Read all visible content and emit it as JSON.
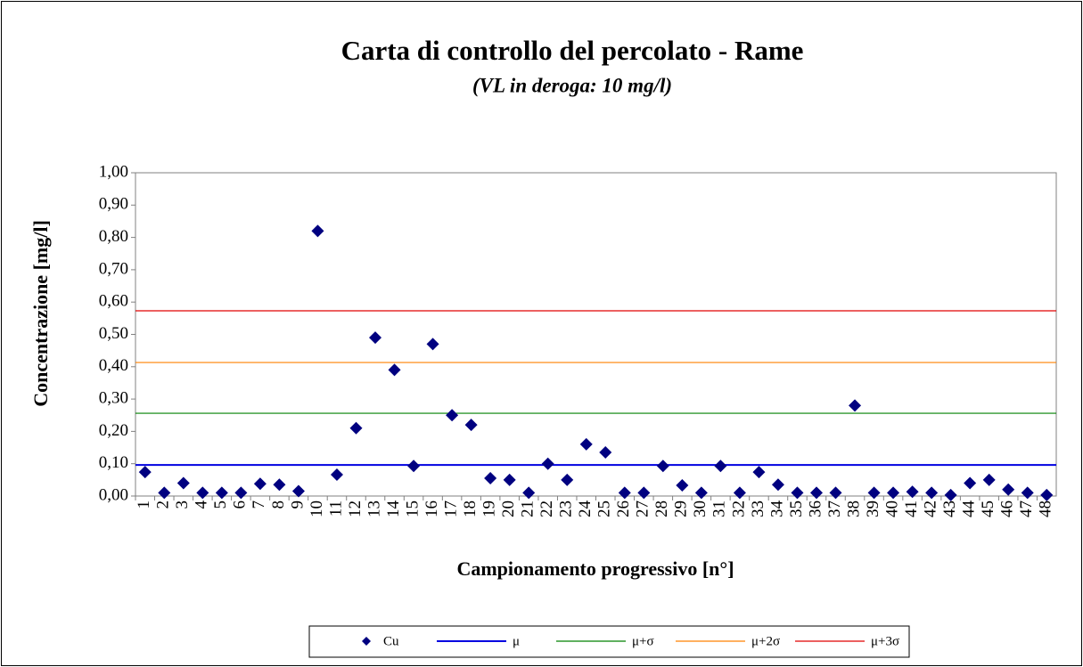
{
  "chart_data": {
    "type": "scatter",
    "title": "Carta di controllo del percolato - Rame",
    "subtitle": "(VL in deroga: 10 mg/l)",
    "y_label": "Concentrazione  [mg/l]",
    "x_label": "Campionamento  progressivo [n°]",
    "categories": [
      "1",
      "2",
      "3",
      "4",
      "5",
      "6",
      "7",
      "8",
      "9",
      "10",
      "11",
      "12",
      "13",
      "14",
      "15",
      "16",
      "17",
      "18",
      "19",
      "20",
      "21",
      "22",
      "23",
      "24",
      "25",
      "26",
      "27",
      "28",
      "29",
      "30",
      "31",
      "32",
      "33",
      "34",
      "35",
      "36",
      "37",
      "38",
      "39",
      "40",
      "41",
      "42",
      "43",
      "44",
      "45",
      "46",
      "47",
      "48"
    ],
    "series": [
      {
        "name": "Cu",
        "color": "#000080",
        "values": [
          0.074,
          0.01,
          0.04,
          0.01,
          0.01,
          0.01,
          0.038,
          0.035,
          0.015,
          0.82,
          0.066,
          0.21,
          0.49,
          0.39,
          0.093,
          0.47,
          0.25,
          0.22,
          0.055,
          0.05,
          0.01,
          0.1,
          0.05,
          0.16,
          0.135,
          0.01,
          0.01,
          0.093,
          0.033,
          0.01,
          0.093,
          0.01,
          0.074,
          0.035,
          0.01,
          0.01,
          0.01,
          0.28,
          0.01,
          0.01,
          0.013,
          0.01,
          0.003,
          0.04,
          0.05,
          0.02,
          0.01,
          0.003
        ]
      }
    ],
    "reference_lines": [
      {
        "name": "μ",
        "color": "#0000e0",
        "value": 0.096
      },
      {
        "name": "μ+σ",
        "color": "#008000",
        "value": 0.256
      },
      {
        "name": "μ+2σ",
        "color": "#ff8000",
        "value": 0.413
      },
      {
        "name": "μ+3σ",
        "color": "#e00000",
        "value": 0.573
      }
    ],
    "ylim": [
      0,
      1
    ],
    "yticks": [
      {
        "value": 0,
        "label": "0,00"
      },
      {
        "value": 0.1,
        "label": "0,10"
      },
      {
        "value": 0.2,
        "label": "0,20"
      },
      {
        "value": 0.3,
        "label": "0,30"
      },
      {
        "value": 0.4,
        "label": "0,40"
      },
      {
        "value": 0.5,
        "label": "0,50"
      },
      {
        "value": 0.6,
        "label": "0,60"
      },
      {
        "value": 0.7,
        "label": "0,70"
      },
      {
        "value": 0.8,
        "label": "0,80"
      },
      {
        "value": 0.9,
        "label": "0,90"
      },
      {
        "value": 1,
        "label": "1,00"
      }
    ],
    "legend": "bottom"
  }
}
